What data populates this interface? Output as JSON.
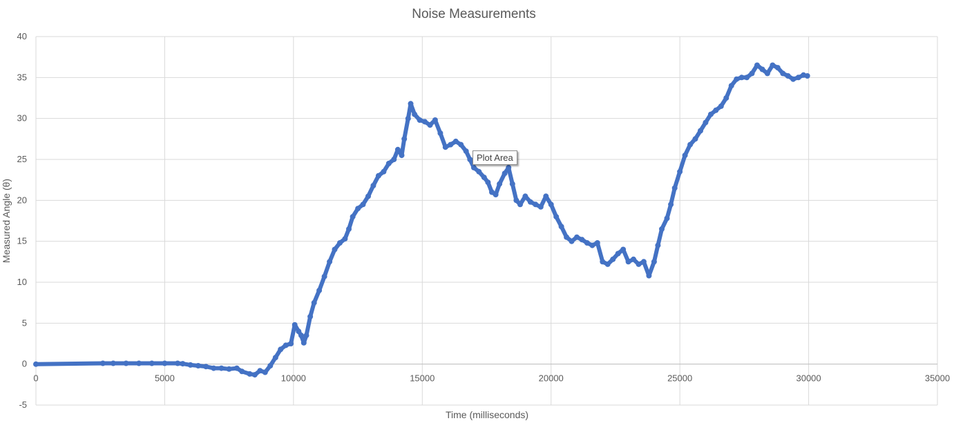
{
  "chart_data": {
    "type": "scatter",
    "title": "Noise Measurements",
    "xlabel": "Time (milliseconds)",
    "ylabel": "Measured Angle (θ)",
    "xlim": [
      0,
      35000
    ],
    "ylim": [
      -5,
      40
    ],
    "xticks": [
      0,
      5000,
      10000,
      15000,
      20000,
      25000,
      30000,
      35000
    ],
    "yticks": [
      -5,
      0,
      5,
      10,
      15,
      20,
      25,
      30,
      35,
      40
    ],
    "grid": true,
    "legend": "none",
    "series": [
      {
        "color": "#4472c4",
        "points": [
          [
            0,
            0
          ],
          [
            2600,
            0.1
          ],
          [
            3000,
            0.1
          ],
          [
            3500,
            0.1
          ],
          [
            4000,
            0.1
          ],
          [
            4500,
            0.1
          ],
          [
            5000,
            0.1
          ],
          [
            5500,
            0.1
          ],
          [
            5700,
            0.05
          ],
          [
            6000,
            -0.1
          ],
          [
            6300,
            -0.2
          ],
          [
            6600,
            -0.3
          ],
          [
            6900,
            -0.5
          ],
          [
            7200,
            -0.5
          ],
          [
            7500,
            -0.6
          ],
          [
            7800,
            -0.5
          ],
          [
            8000,
            -0.9
          ],
          [
            8300,
            -1.2
          ],
          [
            8500,
            -1.3
          ],
          [
            8700,
            -0.8
          ],
          [
            8900,
            -1.0
          ],
          [
            9100,
            -0.2
          ],
          [
            9300,
            0.8
          ],
          [
            9500,
            1.8
          ],
          [
            9700,
            2.3
          ],
          [
            9900,
            2.5
          ],
          [
            10050,
            4.8
          ],
          [
            10200,
            4.0
          ],
          [
            10300,
            3.5
          ],
          [
            10400,
            2.6
          ],
          [
            10500,
            3.5
          ],
          [
            10650,
            5.8
          ],
          [
            10800,
            7.5
          ],
          [
            11000,
            9.0
          ],
          [
            11200,
            10.7
          ],
          [
            11400,
            12.5
          ],
          [
            11600,
            14.0
          ],
          [
            11800,
            14.8
          ],
          [
            12000,
            15.3
          ],
          [
            12150,
            16.5
          ],
          [
            12300,
            18.0
          ],
          [
            12500,
            19.0
          ],
          [
            12700,
            19.5
          ],
          [
            12900,
            20.5
          ],
          [
            13100,
            21.8
          ],
          [
            13300,
            23.0
          ],
          [
            13500,
            23.5
          ],
          [
            13700,
            24.5
          ],
          [
            13900,
            25.0
          ],
          [
            14050,
            26.2
          ],
          [
            14200,
            25.5
          ],
          [
            14300,
            27.5
          ],
          [
            14450,
            30.0
          ],
          [
            14550,
            31.8
          ],
          [
            14700,
            30.5
          ],
          [
            14900,
            29.8
          ],
          [
            15100,
            29.6
          ],
          [
            15300,
            29.2
          ],
          [
            15500,
            29.8
          ],
          [
            15700,
            28.2
          ],
          [
            15900,
            26.5
          ],
          [
            16100,
            26.8
          ],
          [
            16300,
            27.2
          ],
          [
            16500,
            26.8
          ],
          [
            16700,
            26.0
          ],
          [
            16850,
            25.0
          ],
          [
            17000,
            24.0
          ],
          [
            17200,
            23.5
          ],
          [
            17400,
            22.8
          ],
          [
            17550,
            22.2
          ],
          [
            17700,
            21.0
          ],
          [
            17850,
            20.7
          ],
          [
            18000,
            22.0
          ],
          [
            18200,
            23.3
          ],
          [
            18350,
            24.0
          ],
          [
            18500,
            22.0
          ],
          [
            18650,
            20.0
          ],
          [
            18800,
            19.5
          ],
          [
            19000,
            20.5
          ],
          [
            19200,
            19.8
          ],
          [
            19400,
            19.5
          ],
          [
            19600,
            19.2
          ],
          [
            19800,
            20.5
          ],
          [
            20000,
            19.5
          ],
          [
            20200,
            18.0
          ],
          [
            20400,
            16.8
          ],
          [
            20600,
            15.5
          ],
          [
            20800,
            15.0
          ],
          [
            21000,
            15.5
          ],
          [
            21200,
            15.2
          ],
          [
            21400,
            14.8
          ],
          [
            21600,
            14.5
          ],
          [
            21800,
            14.8
          ],
          [
            22000,
            12.5
          ],
          [
            22200,
            12.2
          ],
          [
            22400,
            12.8
          ],
          [
            22600,
            13.5
          ],
          [
            22800,
            14.0
          ],
          [
            23000,
            12.5
          ],
          [
            23200,
            12.8
          ],
          [
            23400,
            12.2
          ],
          [
            23600,
            12.5
          ],
          [
            23800,
            10.8
          ],
          [
            24000,
            12.5
          ],
          [
            24150,
            14.5
          ],
          [
            24300,
            16.5
          ],
          [
            24500,
            17.8
          ],
          [
            24650,
            19.5
          ],
          [
            24800,
            21.5
          ],
          [
            25000,
            23.5
          ],
          [
            25200,
            25.5
          ],
          [
            25400,
            26.8
          ],
          [
            25600,
            27.5
          ],
          [
            25800,
            28.5
          ],
          [
            26000,
            29.5
          ],
          [
            26200,
            30.5
          ],
          [
            26400,
            31.0
          ],
          [
            26600,
            31.5
          ],
          [
            26800,
            32.5
          ],
          [
            27000,
            34.0
          ],
          [
            27200,
            34.8
          ],
          [
            27400,
            35.0
          ],
          [
            27600,
            35.0
          ],
          [
            27800,
            35.5
          ],
          [
            28000,
            36.5
          ],
          [
            28200,
            36.0
          ],
          [
            28400,
            35.5
          ],
          [
            28600,
            36.5
          ],
          [
            28800,
            36.2
          ],
          [
            29000,
            35.5
          ],
          [
            29200,
            35.2
          ],
          [
            29400,
            34.8
          ],
          [
            29600,
            35.0
          ],
          [
            29800,
            35.3
          ],
          [
            29950,
            35.2
          ]
        ]
      }
    ]
  },
  "tooltip": {
    "label": "Plot Area"
  }
}
